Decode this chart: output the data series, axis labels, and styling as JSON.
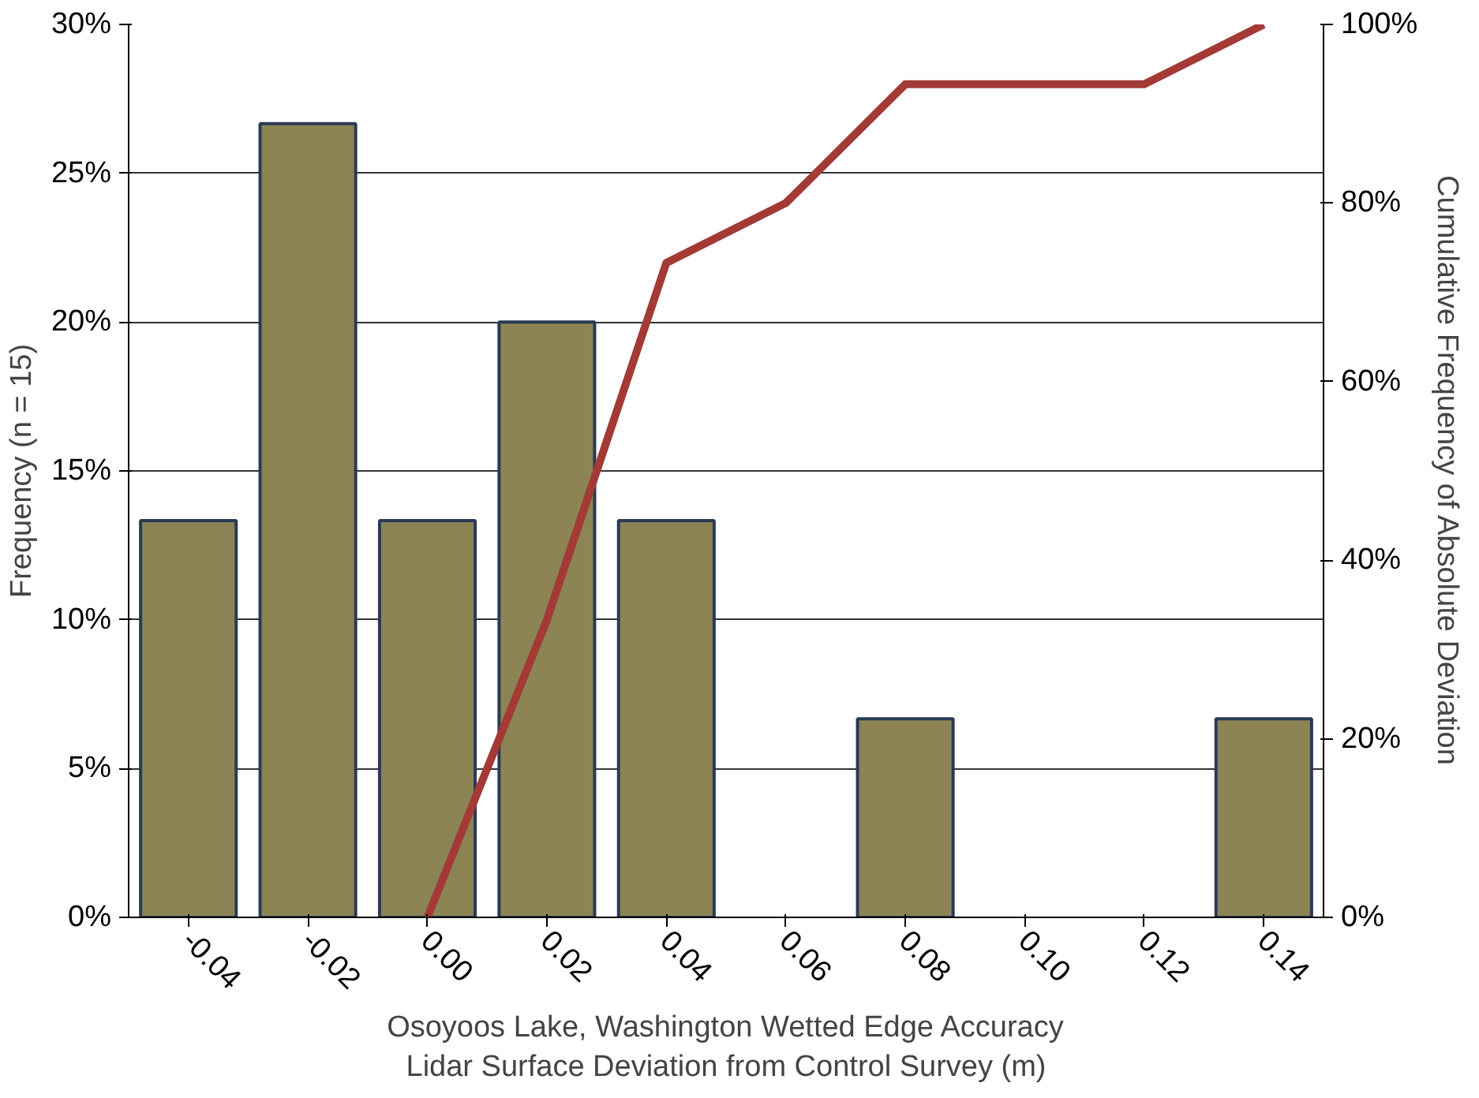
{
  "chart_data": {
    "type": "bar",
    "xlabel": "Osoyoos Lake, Washington Wetted Edge Accuracy\nLidar Surface Deviation from Control Survey (m)",
    "ylabel": "Frequency (n = 15)",
    "y2label": "Cumulative Frequency of Absolute Deviation",
    "categories": [
      "-0.04",
      "-0.02",
      "0.00",
      "0.02",
      "0.04",
      "0.06",
      "0.08",
      "0.10",
      "0.12",
      "0.14"
    ],
    "series": [
      {
        "color": "#8c8455",
        "values": [
          13.33,
          26.67,
          13.33,
          20,
          13.33,
          0,
          6.67,
          0,
          0,
          6.67
        ]
      },
      {
        "type": "line",
        "axis": "y2",
        "color": "#a33a36",
        "x": [
          "0.00",
          "0.02",
          "0.04",
          "0.06",
          "0.08",
          "0.10",
          "0.12",
          "0.14"
        ],
        "values": [
          0,
          33.3,
          73.3,
          80,
          93.3,
          93.3,
          93.3,
          100
        ]
      }
    ],
    "ylim": [
      0,
      30
    ],
    "yticks": [
      {
        "value": 0,
        "label": "0%"
      },
      {
        "value": 5,
        "label": "5%"
      },
      {
        "value": 10,
        "label": "10%"
      },
      {
        "value": 15,
        "label": "15%"
      },
      {
        "value": 20,
        "label": "20%"
      },
      {
        "value": 25,
        "label": "25%"
      },
      {
        "value": 30,
        "label": "30%"
      }
    ],
    "y2lim": [
      0,
      100
    ],
    "y2ticks": [
      {
        "value": 0,
        "label": "0%"
      },
      {
        "value": 20,
        "label": "20%"
      },
      {
        "value": 40,
        "label": "40%"
      },
      {
        "value": 60,
        "label": "60%"
      },
      {
        "value": 80,
        "label": "80%"
      },
      {
        "value": 100,
        "label": "100%"
      }
    ],
    "grid": "y",
    "line_style": "solid",
    "marker": "none"
  }
}
